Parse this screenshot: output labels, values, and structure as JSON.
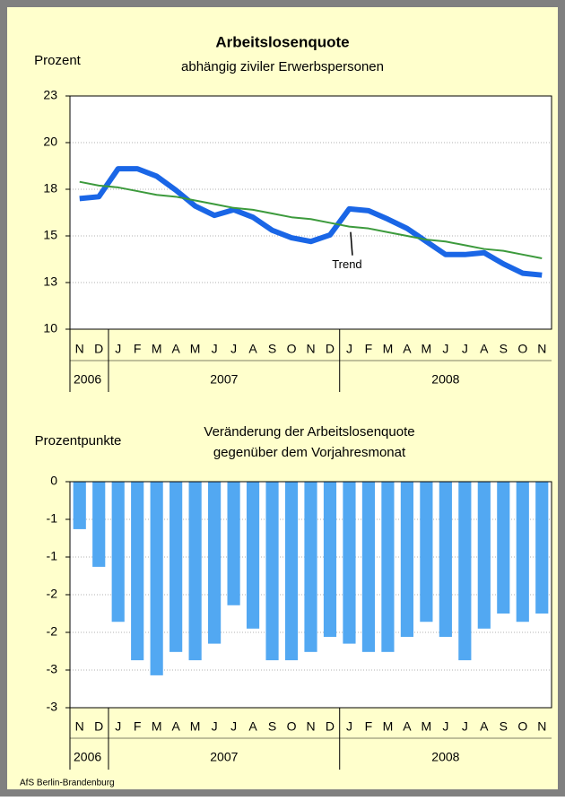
{
  "chart_data": [
    {
      "type": "line",
      "title": "Arbeitslosenquote",
      "subtitle": "abhängig ziviler Erwerbspersonen",
      "ylabel": "Prozent",
      "groups": [
        {
          "label": "2006",
          "categories": [
            "N",
            "D"
          ]
        },
        {
          "label": "2007",
          "categories": [
            "J",
            "F",
            "M",
            "A",
            "M",
            "J",
            "J",
            "A",
            "S",
            "O",
            "N",
            "D"
          ]
        },
        {
          "label": "2008",
          "categories": [
            "J",
            "F",
            "M",
            "A",
            "M",
            "J",
            "J",
            "A",
            "S",
            "O",
            "N"
          ]
        }
      ],
      "series": [
        {
          "color": "#1a66e6",
          "values": [
            17.0,
            17.1,
            18.6,
            18.6,
            18.2,
            17.45,
            16.6,
            16.1,
            16.4,
            16.0,
            15.3,
            14.9,
            14.7,
            15.05,
            16.45,
            16.35,
            15.9,
            15.4,
            14.7,
            14.0,
            14.0,
            14.1,
            13.5,
            13.0,
            12.9
          ]
        },
        {
          "name": "Trend",
          "color": "#3c9a3c",
          "values": [
            17.9,
            17.7,
            17.6,
            17.4,
            17.2,
            17.1,
            16.9,
            16.7,
            16.5,
            16.4,
            16.2,
            16.0,
            15.9,
            15.7,
            15.5,
            15.4,
            15.2,
            15.0,
            14.8,
            14.7,
            14.5,
            14.3,
            14.2,
            14.0,
            13.8
          ]
        }
      ],
      "annotations": [
        {
          "text": "Trend"
        }
      ],
      "ylim": [
        10,
        22.5
      ],
      "yticks": [
        10,
        {
          "value": 12.5,
          "label": "13"
        },
        15,
        {
          "value": 17.5,
          "label": "18"
        },
        20,
        {
          "value": 22.5,
          "label": "23"
        }
      ],
      "grid": true
    },
    {
      "type": "bar",
      "title": "Veränderung der Arbeitslosenquote",
      "subtitle": "gegenüber dem Vorjahresmonat",
      "ylabel": "Prozentpunkte",
      "groups": [
        {
          "label": "2006",
          "categories": [
            "N",
            "D"
          ]
        },
        {
          "label": "2007",
          "categories": [
            "J",
            "F",
            "M",
            "A",
            "M",
            "J",
            "J",
            "A",
            "S",
            "O",
            "N",
            "D"
          ]
        },
        {
          "label": "2008",
          "categories": [
            "J",
            "F",
            "M",
            "A",
            "M",
            "J",
            "J",
            "A",
            "S",
            "O",
            "N"
          ]
        }
      ],
      "color": "#52a8f2",
      "values": [
        -0.63,
        -1.13,
        -1.86,
        -2.37,
        -2.57,
        -2.26,
        -2.37,
        -2.15,
        -1.64,
        -1.95,
        -2.37,
        -2.37,
        -2.26,
        -2.06,
        -2.15,
        -2.26,
        -2.26,
        -2.06,
        -1.86,
        -2.06,
        -2.37,
        -1.95,
        -1.75,
        -1.86,
        -1.75
      ],
      "ylim": [
        -3,
        0
      ],
      "yticks": [
        0,
        {
          "value": -0.5,
          "label": "-1"
        },
        -1,
        {
          "value": -1.5,
          "label": "-2"
        },
        -2,
        {
          "value": -2.5,
          "label": "-3"
        },
        -3
      ],
      "grid": true
    }
  ],
  "footer": "AfS Berlin-Brandenburg"
}
